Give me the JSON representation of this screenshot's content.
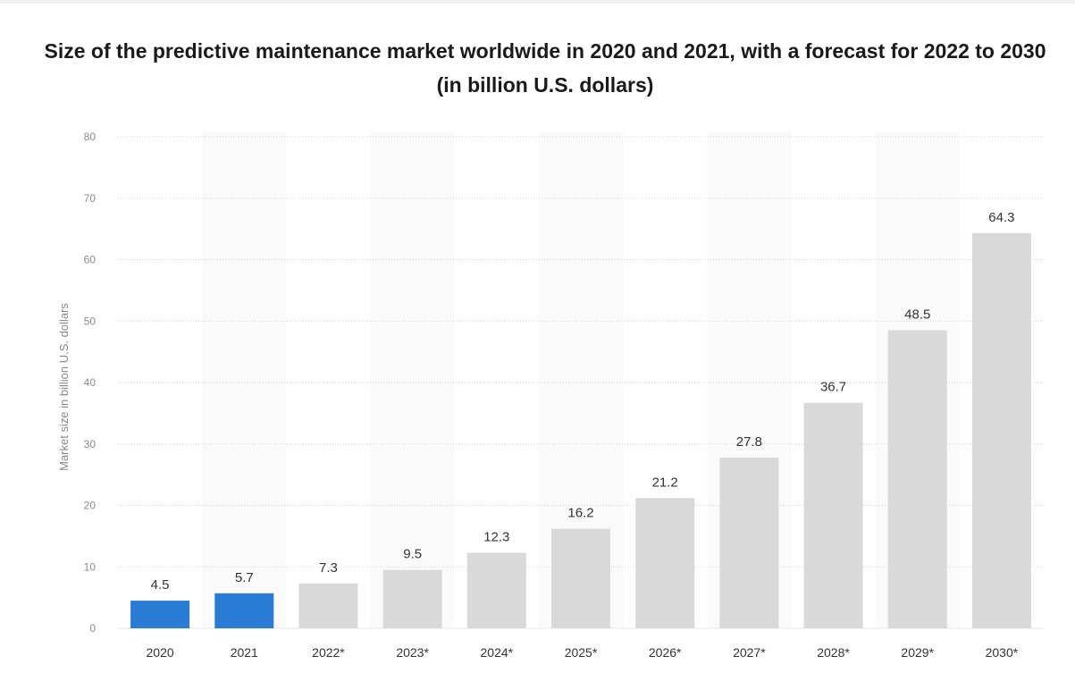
{
  "chart_data": {
    "type": "bar",
    "title": "Size of the predictive maintenance market worldwide in 2020 and 2021, with a forecast for 2022 to 2030 (in billion U.S. dollars)",
    "xlabel": "",
    "ylabel": "Market size in billion U.S. dollars",
    "ylim": [
      0,
      80
    ],
    "yticks": [
      0,
      10,
      20,
      30,
      40,
      50,
      60,
      70,
      80
    ],
    "grid": true,
    "categories": [
      "2020",
      "2021",
      "2022*",
      "2023*",
      "2024*",
      "2025*",
      "2026*",
      "2027*",
      "2028*",
      "2029*",
      "2030*"
    ],
    "values": [
      4.5,
      5.7,
      7.3,
      9.5,
      12.3,
      16.2,
      21.2,
      27.8,
      36.7,
      48.5,
      64.3
    ],
    "value_labels": [
      "4.5",
      "5.7",
      "7.3",
      "9.5",
      "12.3",
      "16.2",
      "21.2",
      "27.8",
      "36.7",
      "48.5",
      "64.3"
    ],
    "bar_colors": [
      "#2a7bd4",
      "#2a7bd4",
      "#d9d9d9",
      "#d9d9d9",
      "#d9d9d9",
      "#d9d9d9",
      "#d9d9d9",
      "#d9d9d9",
      "#d9d9d9",
      "#d9d9d9",
      "#d9d9d9"
    ]
  }
}
